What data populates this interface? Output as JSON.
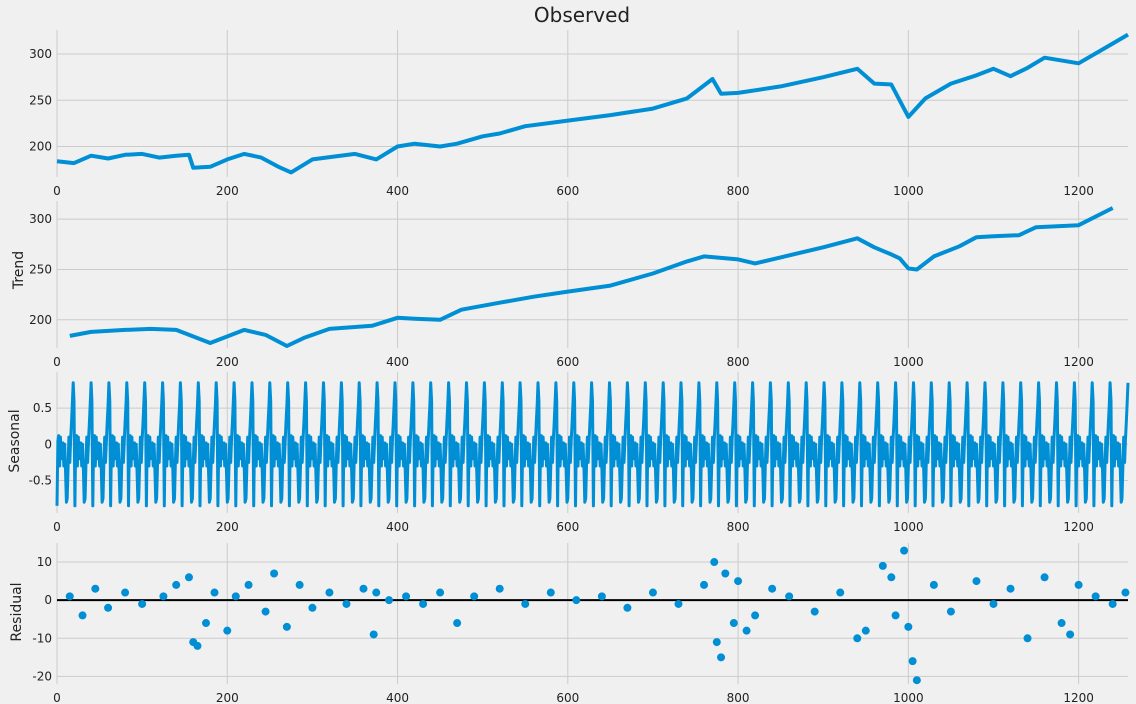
{
  "colors": {
    "series": "#008fd5",
    "background": "#f0f0f0",
    "grid": "#cbcbcb",
    "zero_line": "#000000"
  },
  "chart_data": [
    {
      "type": "line",
      "title": "Observed",
      "ylabel": "",
      "xlim": [
        0,
        1258
      ],
      "ylim": [
        167,
        326
      ],
      "xticks": [
        0,
        200,
        400,
        600,
        800,
        1000,
        1200
      ],
      "yticks": [
        200,
        250,
        300
      ],
      "grid": true,
      "series": [
        {
          "x": [
            0,
            20,
            40,
            60,
            80,
            100,
            120,
            140,
            155,
            160,
            180,
            200,
            220,
            240,
            260,
            275,
            300,
            350,
            375,
            400,
            420,
            450,
            470,
            500,
            520,
            550,
            600,
            650,
            700,
            740,
            770,
            780,
            800,
            850,
            900,
            940,
            960,
            980,
            1000,
            1020,
            1050,
            1080,
            1100,
            1120,
            1140,
            1160,
            1200,
            1230,
            1258
          ],
          "y": [
            184,
            182,
            190,
            187,
            191,
            192,
            188,
            190,
            191,
            177,
            178,
            186,
            192,
            188,
            178,
            172,
            186,
            192,
            186,
            200,
            203,
            200,
            203,
            211,
            214,
            222,
            228,
            234,
            241,
            252,
            273,
            257,
            258,
            265,
            275,
            284,
            268,
            267,
            232,
            252,
            268,
            277,
            284,
            276,
            285,
            296,
            290,
            306,
            321
          ]
        }
      ]
    },
    {
      "type": "line",
      "ylabel": "Trend",
      "xlim": [
        0,
        1258
      ],
      "ylim": [
        172,
        318
      ],
      "xticks": [
        0,
        200,
        400,
        600,
        800,
        1000,
        1200
      ],
      "yticks": [
        200,
        250,
        300
      ],
      "grid": true,
      "series": [
        {
          "x": [
            15,
            40,
            80,
            110,
            140,
            180,
            220,
            245,
            270,
            290,
            320,
            370,
            400,
            420,
            450,
            475,
            520,
            560,
            600,
            650,
            700,
            740,
            760,
            800,
            820,
            850,
            900,
            940,
            960,
            980,
            990,
            1000,
            1010,
            1030,
            1060,
            1080,
            1100,
            1130,
            1150,
            1200,
            1240
          ],
          "y": [
            184,
            188,
            190,
            191,
            190,
            177,
            190,
            185,
            174,
            182,
            191,
            194,
            202,
            201,
            200,
            210,
            217,
            223,
            228,
            234,
            246,
            258,
            263,
            260,
            256,
            262,
            272,
            281,
            272,
            265,
            261,
            251,
            250,
            263,
            273,
            282,
            283,
            284,
            292,
            294,
            311
          ]
        }
      ]
    },
    {
      "type": "line",
      "ylabel": "Seasonal",
      "xlim": [
        0,
        1258
      ],
      "ylim": [
        -0.95,
        1.0
      ],
      "xticks": [
        0,
        200,
        400,
        600,
        800,
        1000,
        1200
      ],
      "yticks": [
        -0.5,
        0.0,
        0.5
      ],
      "grid": true,
      "period": 21,
      "series": [
        {
          "pattern": [
            -0.85,
            0.05,
            0.12,
            -0.3,
            0.1,
            -0.2,
            -0.05,
            0.02,
            -0.3,
            0.0,
            -0.35,
            -0.8,
            -0.75,
            -0.3,
            0.1,
            -0.25,
            0.05,
            0.3,
            0.55,
            0.85,
            0.6
          ]
        }
      ]
    },
    {
      "type": "scatter",
      "ylabel": "Residual",
      "xlim": [
        0,
        1258
      ],
      "ylim": [
        -22,
        15
      ],
      "xticks": [
        0,
        200,
        400,
        600,
        800,
        1000,
        1200
      ],
      "yticks": [
        -20,
        -10,
        0,
        10
      ],
      "grid": true,
      "zero_line": true,
      "series": [
        {
          "x": [
            15,
            30,
            45,
            60,
            80,
            100,
            125,
            140,
            155,
            160,
            165,
            175,
            185,
            200,
            210,
            225,
            245,
            255,
            270,
            285,
            300,
            320,
            340,
            360,
            372,
            375,
            390,
            410,
            430,
            450,
            470,
            490,
            520,
            550,
            580,
            610,
            640,
            670,
            700,
            730,
            760,
            772,
            775,
            780,
            785,
            795,
            800,
            810,
            820,
            840,
            860,
            890,
            920,
            940,
            950,
            970,
            980,
            985,
            995,
            1000,
            1005,
            1010,
            1030,
            1050,
            1080,
            1100,
            1120,
            1140,
            1160,
            1180,
            1190,
            1200,
            1220,
            1240,
            1255
          ],
          "y": [
            1,
            -4,
            3,
            -2,
            2,
            -1,
            1,
            4,
            6,
            -11,
            -12,
            -6,
            2,
            -8,
            1,
            4,
            -3,
            7,
            -7,
            4,
            -2,
            2,
            -1,
            3,
            -9,
            2,
            0,
            1,
            -1,
            2,
            -6,
            1,
            3,
            -1,
            2,
            0,
            1,
            -2,
            2,
            -1,
            4,
            10,
            -11,
            -15,
            7,
            -6,
            5,
            -8,
            -4,
            3,
            1,
            -3,
            2,
            -10,
            -8,
            9,
            6,
            -4,
            13,
            -7,
            -16,
            -21,
            4,
            -3,
            5,
            -1,
            3,
            -10,
            6,
            -6,
            -9,
            4,
            1,
            -1,
            2
          ]
        }
      ]
    }
  ]
}
